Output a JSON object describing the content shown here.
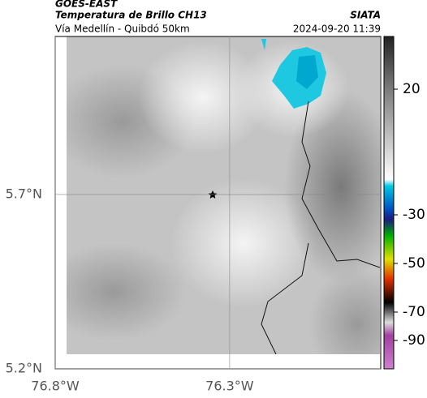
{
  "header": {
    "satellite": "GOES-EAST",
    "product": "Temperatura de Brillo CH13",
    "region": "Vía Medellín - Quibdó 50km",
    "source": "SIATA",
    "timestamp": "2024-09-20 11:39"
  },
  "map": {
    "xlim": [
      -76.8,
      -75.867
    ],
    "ylim": [
      5.2,
      6.153
    ],
    "lat_ticks": [
      {
        "value": 5.7,
        "label": "5.7°N"
      },
      {
        "value": 5.2,
        "label": "5.2°N"
      }
    ],
    "lon_ticks": [
      {
        "value": -76.8,
        "label": "76.8°W"
      },
      {
        "value": -76.3,
        "label": "76.3°W"
      }
    ]
  },
  "colorbar": {
    "ticks": [
      20,
      -30,
      -50,
      -70,
      -90
    ]
  }
}
